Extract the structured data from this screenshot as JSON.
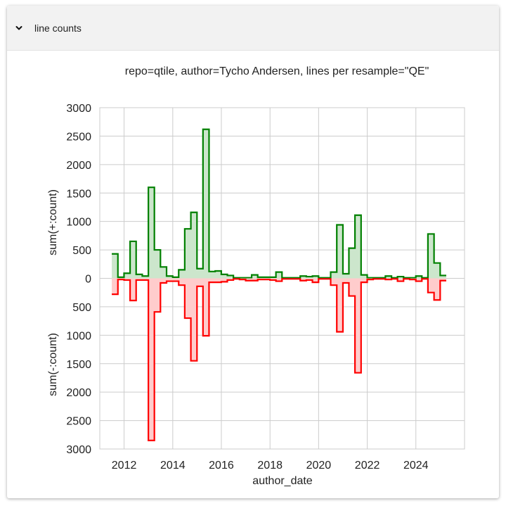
{
  "panel": {
    "title": "line counts",
    "expanded": true,
    "toggle_icon": "chevron-down-icon"
  },
  "chart_data": {
    "type": "area",
    "step": "post",
    "title": "repo=qtile, author=Tycho Andersen, lines per resample=\"QE\"",
    "xlabel": "author_date",
    "ylabel_top": "sum(+:count)",
    "ylabel_bottom": "sum(-:count)",
    "x_ticks": [
      "2012",
      "2014",
      "2016",
      "2018",
      "2020",
      "2022",
      "2024"
    ],
    "xlim": [
      "2011-01-01",
      "2026-01-01"
    ],
    "y_ticks": [
      "3000",
      "2500",
      "2000",
      "1500",
      "1000",
      "500",
      "0",
      "500",
      "1000",
      "1500",
      "2000",
      "2500",
      "3000"
    ],
    "ylim": [
      -3000,
      3000
    ],
    "grid": true,
    "colors": {
      "additions": "#008000",
      "additions_fill": "#cce6cc",
      "deletions": "#ff0000",
      "deletions_fill": "#ffcccc",
      "grid": "#cccccc"
    },
    "x": [
      "2011-06-30",
      "2011-09-30",
      "2011-12-31",
      "2012-03-31",
      "2012-06-30",
      "2012-09-30",
      "2012-12-31",
      "2013-03-31",
      "2013-06-30",
      "2013-09-30",
      "2013-12-31",
      "2014-03-31",
      "2014-06-30",
      "2014-09-30",
      "2014-12-31",
      "2015-03-31",
      "2015-06-30",
      "2015-09-30",
      "2015-12-31",
      "2016-03-31",
      "2016-06-30",
      "2016-09-30",
      "2016-12-31",
      "2017-03-31",
      "2017-06-30",
      "2017-09-30",
      "2017-12-31",
      "2018-03-31",
      "2018-06-30",
      "2018-09-30",
      "2018-12-31",
      "2019-03-31",
      "2019-06-30",
      "2019-09-30",
      "2019-12-31",
      "2020-03-31",
      "2020-06-30",
      "2020-09-30",
      "2020-12-31",
      "2021-03-31",
      "2021-06-30",
      "2021-09-30",
      "2021-12-31",
      "2022-03-31",
      "2022-06-30",
      "2022-09-30",
      "2022-12-31",
      "2023-03-31",
      "2023-06-30",
      "2023-09-30",
      "2023-12-31",
      "2024-03-31",
      "2024-06-30",
      "2024-09-30",
      "2024-12-31"
    ],
    "series": [
      {
        "role": "additions",
        "values": [
          430,
          20,
          90,
          650,
          70,
          40,
          1600,
          500,
          200,
          40,
          20,
          150,
          870,
          1160,
          170,
          2620,
          120,
          130,
          70,
          50,
          10,
          10,
          10,
          60,
          20,
          20,
          20,
          110,
          10,
          10,
          10,
          40,
          30,
          40,
          10,
          10,
          110,
          940,
          80,
          530,
          1110,
          60,
          10,
          10,
          10,
          40,
          10,
          30,
          10,
          10,
          40,
          10,
          780,
          270,
          50
        ]
      },
      {
        "role": "deletions",
        "values": [
          280,
          20,
          30,
          390,
          30,
          30,
          2850,
          590,
          80,
          50,
          50,
          120,
          700,
          1450,
          140,
          1010,
          70,
          70,
          60,
          30,
          10,
          20,
          40,
          40,
          20,
          20,
          30,
          50,
          10,
          10,
          10,
          40,
          30,
          70,
          10,
          10,
          120,
          940,
          80,
          310,
          1660,
          70,
          20,
          10,
          10,
          20,
          10,
          50,
          10,
          20,
          50,
          10,
          250,
          380,
          40
        ]
      }
    ]
  }
}
